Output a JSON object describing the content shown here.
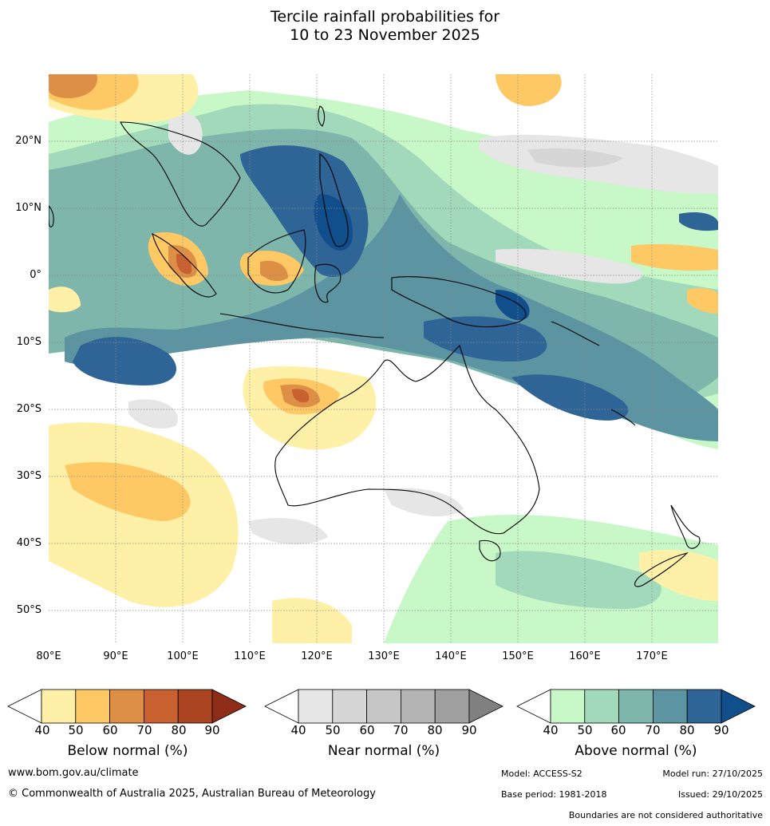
{
  "title": {
    "line1": "Tercile rainfall probabilities for",
    "line2": "10 to 23 November 2025"
  },
  "map": {
    "lat_ticks": [
      "20°N",
      "10°N",
      "0°",
      "10°S",
      "20°S",
      "30°S",
      "40°S",
      "50°S"
    ],
    "lon_ticks": [
      "80°E",
      "90°E",
      "100°E",
      "110°E",
      "120°E",
      "130°E",
      "140°E",
      "150°E",
      "160°E",
      "170°E"
    ],
    "colors": {
      "below": [
        "#fff0a8",
        "#fec965",
        "#dd8f45",
        "#c9602f",
        "#ab4421",
        "#8e2c17"
      ],
      "near": [
        "#e6e6e6",
        "#d6d6d6",
        "#c6c6c6",
        "#b4b4b4",
        "#a0a0a0",
        "#808080"
      ],
      "above": [
        "#c8f7c8",
        "#a2d9bb",
        "#7fb6ac",
        "#5c94a2",
        "#2f6496",
        "#114f8c"
      ]
    }
  },
  "colorbars": [
    {
      "name": "below",
      "title": "Below normal (%)",
      "ticks": [
        "40",
        "50",
        "60",
        "70",
        "80",
        "90"
      ]
    },
    {
      "name": "near",
      "title": "Near normal (%)",
      "ticks": [
        "40",
        "50",
        "60",
        "70",
        "80",
        "90"
      ]
    },
    {
      "name": "above",
      "title": "Above normal (%)",
      "ticks": [
        "40",
        "50",
        "60",
        "70",
        "80",
        "90"
      ]
    }
  ],
  "footer": {
    "website": "www.bom.gov.au/climate",
    "copyright": "© Commonwealth of Australia 2025, Australian Bureau of Meteorology",
    "model": "Model: ACCESS-S2",
    "model_run": "Model run: 27/10/2025",
    "base_period": "Base period: 1981-2018",
    "issued": "Issued: 29/10/2025",
    "disclaimer": "Boundaries are not considered authoritative"
  }
}
